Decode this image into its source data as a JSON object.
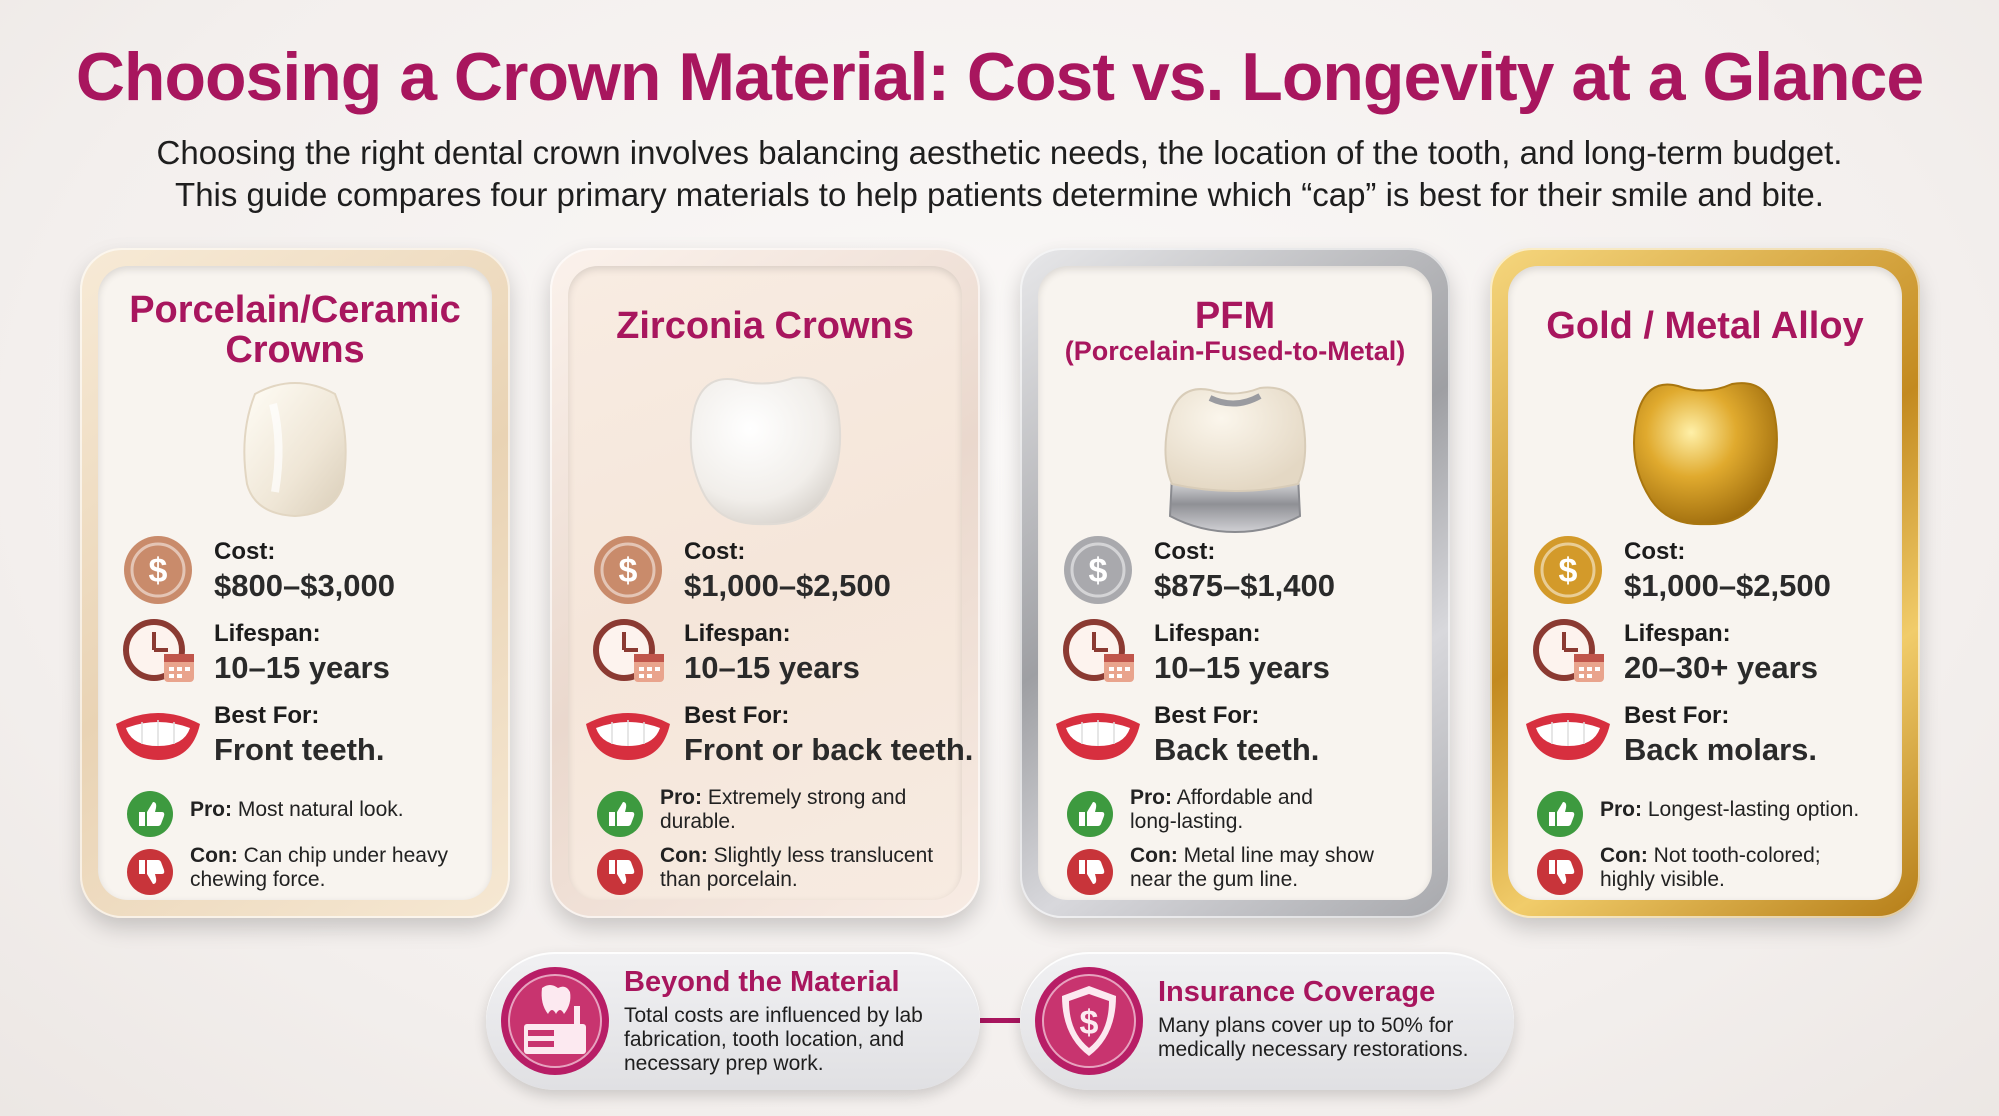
{
  "header": {
    "title": "Choosing a Crown Material: Cost vs. Longevity at a Glance",
    "subtitle_line1": "Choosing the right dental crown involves balancing aesthetic needs, the location of the tooth, and long-term budget.",
    "subtitle_line2": "This guide compares four primary materials to help patients determine which “cap” is best for their smile and bite."
  },
  "labels": {
    "cost": "Cost:",
    "lifespan": "Lifespan:",
    "best_for": "Best For:",
    "pro": "Pro:",
    "con": "Con:"
  },
  "cards": [
    {
      "title_line1": "Porcelain/Ceramic",
      "title_line2": "Crowns",
      "cost": "$800–$3,000",
      "lifespan": "10–15 years",
      "best_for": "Front teeth.",
      "pro_line1": "Most natural look.",
      "pro_line2": "",
      "con_line1": "Can chip under heavy",
      "con_line2": "chewing force.",
      "coin_color": "#c98b6b"
    },
    {
      "title_line1": "Zirconia Crowns",
      "title_line2": "",
      "cost": "$1,000–$2,500",
      "lifespan": "10–15 years",
      "best_for": "Front or back teeth.",
      "pro_line1": "Extremely strong and",
      "pro_line2": "durable.",
      "con_line1": "Slightly less translucent",
      "con_line2": "than porcelain.",
      "coin_color": "#c98b6b"
    },
    {
      "title_line1": "PFM",
      "title_line2": "(Porcelain-Fused-to-Metal)",
      "cost": "$875–$1,400",
      "lifespan": "10–15 years",
      "best_for": "Back teeth.",
      "pro_line1": "Affordable and",
      "pro_line2": "long-lasting.",
      "con_line1": "Metal line may show",
      "con_line2": "near the gum line.",
      "coin_color": "#a9a9ad"
    },
    {
      "title_line1": "Gold / Metal Alloy",
      "title_line2": "",
      "cost": "$1,000–$2,500",
      "lifespan": "20–30+ years",
      "best_for": "Back molars.",
      "pro_line1": "Longest-lasting option.",
      "pro_line2": "",
      "con_line1": "Not tooth-colored;",
      "con_line2": "highly visible.",
      "coin_color": "#d39a2a"
    }
  ],
  "footer": {
    "beyond_title": "Beyond the Material",
    "beyond_line1": "Total costs are influenced by lab",
    "beyond_line2": "fabrication, tooth location, and",
    "beyond_line3": "necessary prep work.",
    "insurance_title": "Insurance Coverage",
    "insurance_line1": "Many plans cover up to 50% for",
    "insurance_line2": "medically necessary restorations."
  },
  "icons": [
    "dollar-coin-icon",
    "clock-calendar-icon",
    "smile-icon",
    "thumbs-up-icon",
    "thumbs-down-icon",
    "dental-lab-icon",
    "shield-dollar-icon"
  ],
  "colors": {
    "accent": "#a8165e",
    "pro_green": "#3d9a3f",
    "con_red": "#c8343a"
  }
}
